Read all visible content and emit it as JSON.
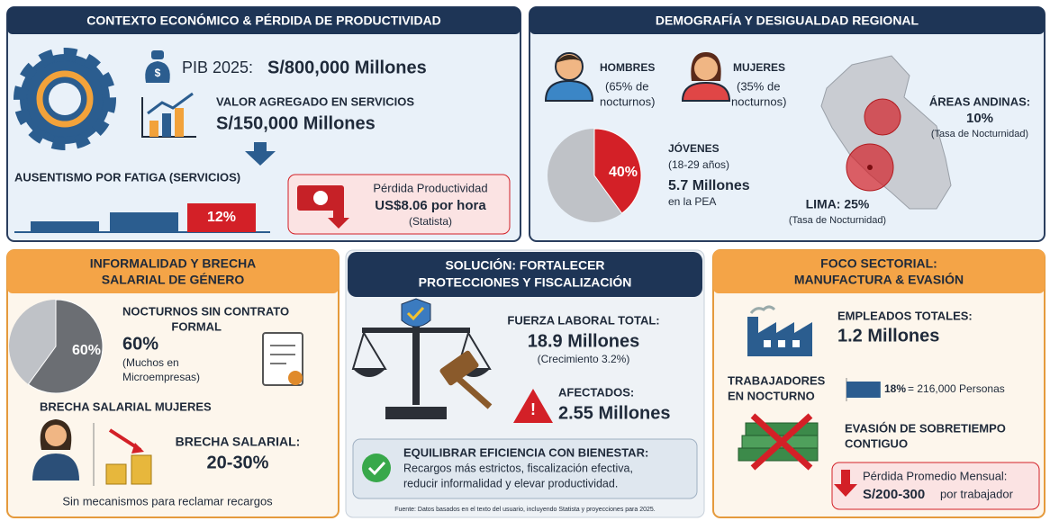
{
  "panels": {
    "economic": {
      "title": "CONTEXTO ECONÓMICO & PÉRDIDA DE PRODUCTIVIDAD",
      "pib_label": "PIB 2025:",
      "pib_value": "S/800,000 Millones",
      "services_label": "VALOR AGREGADO EN SERVICIOS",
      "services_value": "S/150,000 Millones",
      "absent_label": "AUSENTISMO POR FATIGA (SERVICIOS)",
      "absent_value": "12%",
      "loss_title": "Pérdida Productividad",
      "loss_value": "US$8.06 por hora",
      "loss_source": "(Statista)"
    },
    "demography": {
      "title": "DEMOGRAFÍA Y DESIGUALDAD REGIONAL",
      "men": {
        "label": "HOMBRES",
        "lines": [
          "(65% de",
          "nocturnos)"
        ]
      },
      "women": {
        "label": "MUJERES",
        "lines": [
          "(35% de",
          "nocturnos)"
        ]
      },
      "youth": {
        "pie_value": 40,
        "pie_label": "40%",
        "label": "JÓVENES",
        "ages": "(18-29 años)",
        "value": "5.7 Millones",
        "note": "en la PEA"
      },
      "andes": {
        "label": "ÁREAS ANDINAS:",
        "value": "10%",
        "note": "(Tasa de Nocturnidad)"
      },
      "lima": {
        "label": "LIMA: 25%",
        "note": "(Tasa de Nocturnidad)"
      }
    },
    "informality": {
      "title": [
        "INFORMALIDAD Y BRECHA",
        "SALARIAL DE GÉNERO"
      ],
      "pie_value": 60,
      "pie_label": "60%",
      "label": [
        "NOCTURNOS SIN CONTRATO",
        "FORMAL"
      ],
      "value": "60%",
      "note": [
        "(Muchos en",
        "Microempresas)"
      ],
      "gap_title": "BRECHA SALARIAL MUJERES",
      "gap_label": "BRECHA SALARIAL:",
      "gap_value": "20-30%",
      "footer": "Sin mecanismos para reclamar recargos"
    },
    "solution": {
      "title": [
        "SOLUCIÓN: FORTALECER",
        "PROTECCIONES Y FISCALIZACIÓN"
      ],
      "workforce_label": "FUERZA LABORAL TOTAL:",
      "workforce_value": "18.9 Millones",
      "growth": "(Crecimiento 3.2%)",
      "affected_label": "AFECTADOS:",
      "affected_value": "2.55 Millones",
      "callout_title": "EQUILIBRAR EFICIENCIA CON BIENESTAR:",
      "callout_lines": [
        "Recargos más estrictos, fiscalización efectiva,",
        "reducir informalidad y elevar productividad."
      ],
      "source": "Fuente: Datos basados en el texto del usuario, incluyendo Statista y proyecciones para 2025."
    },
    "sector": {
      "title": [
        "FOCO SECTORIAL:",
        "MANUFACTURA & EVASIÓN"
      ],
      "employees_label": "EMPLEADOS TOTALES:",
      "employees_value": "1.2 Millones",
      "night_label": [
        "TRABAJADORES",
        "EN NOCTURNO"
      ],
      "night_pct": 18,
      "night_pct_label": "18%",
      "night_rest": "= 216,000 Personas",
      "evasion": [
        "EVASIÓN DE SOBRETIEMPO",
        "CONTIGUO"
      ],
      "loss_title": "Pérdida Promedio Mensual:",
      "loss_value": "S/200-300",
      "loss_unit": "por trabajador"
    }
  }
}
